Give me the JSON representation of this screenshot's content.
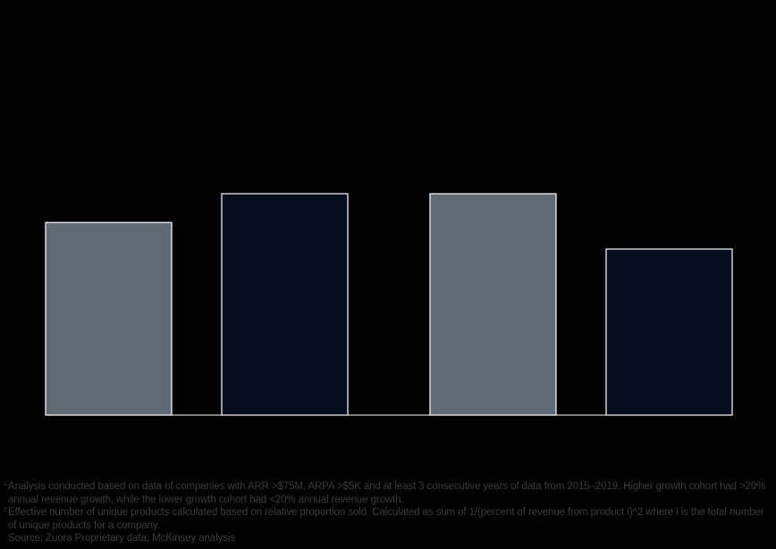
{
  "chart_data": {
    "type": "bar",
    "title": "",
    "xlabel": "",
    "ylabel": "",
    "ylim": [
      0,
      100
    ],
    "categories": [
      "",
      "",
      "",
      ""
    ],
    "values": [
      87,
      100,
      100,
      75
    ],
    "bar_colors": [
      "#5f6b74",
      "#050c1c",
      "#5f6b74",
      "#050c1c"
    ],
    "bar_outline": "#ffffff",
    "baseline_color": "#ffffff",
    "grid": false
  },
  "footnotes": [
    {
      "mark": "1",
      "text": "Analysis conducted based on data of companies with ARR >$75M, ARPA >$5K and at least 3 consecutive years of data from 2015–2019. Higher growth cohort had >20% annual revenue growth, while the lower growth cohort had <20% annual revenue growth."
    },
    {
      "mark": "2",
      "text": "Effective number of unique products calculated based on relative proportion sold. Calculated as sum of 1/(percent of revenue from product i)^2 where i is the total number of unique products for a company."
    }
  ],
  "source": "Source: Zuora Proprietary data; McKinsey analysis"
}
